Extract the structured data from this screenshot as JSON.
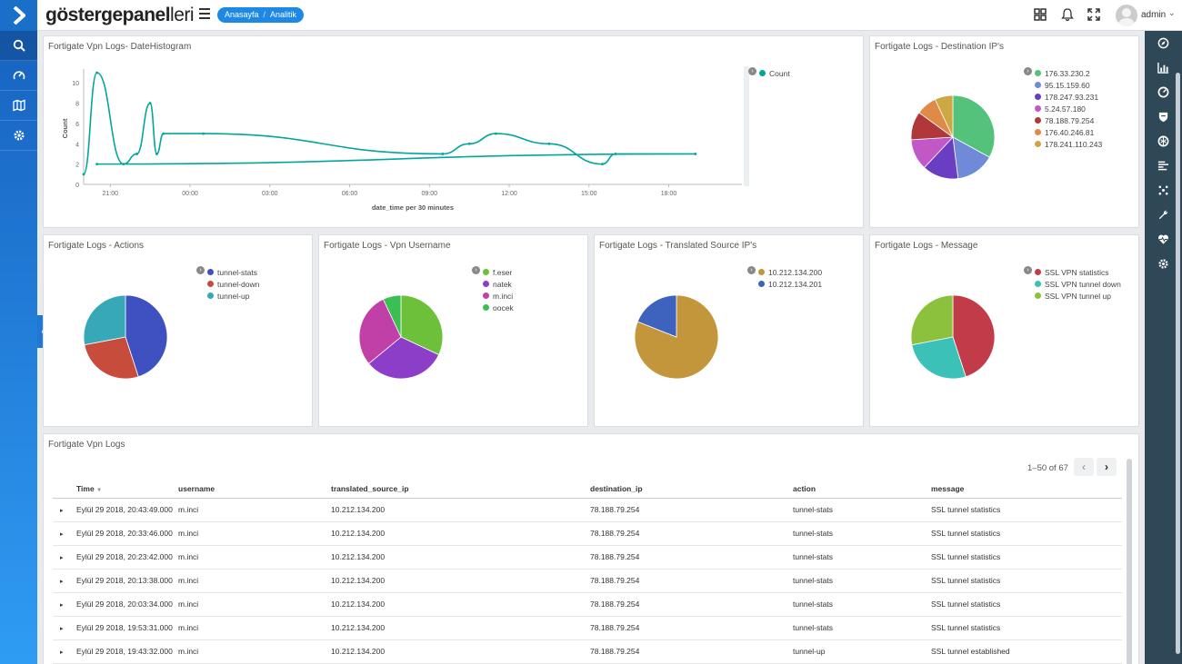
{
  "app": {
    "brand_bold": "göstergepanel",
    "brand_rest": "leri",
    "breadcrumb": [
      "Anasayfa",
      "Analitik"
    ],
    "user": "admin"
  },
  "colors": {
    "accent": "#1e88e5",
    "sidebar": "#1a6fc9",
    "right_sidebar": "#2f4858",
    "line": "#00a69c"
  },
  "left_sidebar": {
    "items": [
      {
        "icon": "search-icon"
      },
      {
        "icon": "dashboard-gauge-icon"
      },
      {
        "icon": "map-icon"
      },
      {
        "icon": "gear-icon"
      }
    ]
  },
  "right_sidebar": {
    "items": [
      {
        "icon": "compass-icon"
      },
      {
        "icon": "bar-chart-icon"
      },
      {
        "icon": "dashboard-icon"
      },
      {
        "icon": "shield-icon"
      },
      {
        "icon": "brain-icon"
      },
      {
        "icon": "list-icon"
      },
      {
        "icon": "nodes-icon"
      },
      {
        "icon": "wrench-icon"
      },
      {
        "icon": "heartbeat-icon"
      },
      {
        "icon": "gear-icon"
      }
    ]
  },
  "panels": {
    "histogram": {
      "title": "Fortigate Vpn Logs- DateHistogram",
      "legend": [
        "Count"
      ]
    },
    "dest_ip": {
      "title": "Fortigate Logs - Destination IP's",
      "legend": [
        "176.33.230.2",
        "95.15.159.60",
        "178.247.93.231",
        "5.24.57.180",
        "78.188.79.254",
        "176.40.246.81",
        "178.241.110.243"
      ]
    },
    "actions": {
      "title": "Fortigate Logs - Actions",
      "legend": [
        "tunnel-stats",
        "tunnel-down",
        "tunnel-up"
      ]
    },
    "username": {
      "title": "Fortigate Logs - Vpn Username",
      "legend": [
        "f.eser",
        "natek",
        "m.inci",
        "oocek"
      ]
    },
    "translated": {
      "title": "Fortigate Logs - Translated Source IP's",
      "legend": [
        "10.212.134.200",
        "10.212.134.201"
      ]
    },
    "message": {
      "title": "Fortigate Logs - Message",
      "legend": [
        "SSL VPN statistics",
        "SSL VPN tunnel down",
        "SSL VPN tunnel up"
      ]
    }
  },
  "table": {
    "title": "Fortigate Vpn Logs",
    "pager": "1–50 of 67",
    "columns": [
      "Time",
      "username",
      "translated_source_ip",
      "destination_ip",
      "action",
      "message"
    ],
    "rows": [
      [
        "Eylül 29 2018, 20:43:49.000",
        "m.inci",
        "10.212.134.200",
        "78.188.79.254",
        "tunnel-stats",
        "SSL tunnel statistics"
      ],
      [
        "Eylül 29 2018, 20:33:46.000",
        "m.inci",
        "10.212.134.200",
        "78.188.79.254",
        "tunnel-stats",
        "SSL tunnel statistics"
      ],
      [
        "Eylül 29 2018, 20:23:42.000",
        "m.inci",
        "10.212.134.200",
        "78.188.79.254",
        "tunnel-stats",
        "SSL tunnel statistics"
      ],
      [
        "Eylül 29 2018, 20:13:38.000",
        "m.inci",
        "10.212.134.200",
        "78.188.79.254",
        "tunnel-stats",
        "SSL tunnel statistics"
      ],
      [
        "Eylül 29 2018, 20:03:34.000",
        "m.inci",
        "10.212.134.200",
        "78.188.79.254",
        "tunnel-stats",
        "SSL tunnel statistics"
      ],
      [
        "Eylül 29 2018, 19:53:31.000",
        "m.inci",
        "10.212.134.200",
        "78.188.79.254",
        "tunnel-stats",
        "SSL tunnel statistics"
      ],
      [
        "Eylül 29 2018, 19:43:32.000",
        "m.inci",
        "10.212.134.200",
        "78.188.79.254",
        "tunnel-up",
        "SSL tunnel established"
      ]
    ]
  },
  "chart_data": [
    {
      "type": "line",
      "title": "Fortigate Vpn Logs- DateHistogram",
      "xlabel": "date_time per 30 minutes",
      "ylabel": "Count",
      "x_ticks": [
        "21:00",
        "00:00",
        "03:00",
        "06:00",
        "09:00",
        "12:00",
        "15:00",
        "18:00"
      ],
      "y_ticks": [
        "0",
        "2",
        "4",
        "6",
        "8",
        "10"
      ],
      "ylim": [
        0,
        11
      ],
      "legend_position": "top-right",
      "series": [
        {
          "name": "Count",
          "color": "#00a69c",
          "points": [
            [
              "20:00",
              1
            ],
            [
              "20:30",
              11
            ],
            [
              "21:30",
              2
            ],
            [
              "22:00",
              3
            ],
            [
              "22:30",
              8
            ],
            [
              "22:45",
              3
            ],
            [
              "23:00",
              5
            ],
            [
              "00:30",
              5
            ],
            [
              "09:30",
              3
            ],
            [
              "10:30",
              4
            ],
            [
              "11:30",
              5
            ],
            [
              "13:30",
              4
            ],
            [
              "15:30",
              2
            ],
            [
              "16:00",
              3
            ],
            [
              "19:00",
              3
            ],
            [
              "20:30",
              2
            ]
          ]
        }
      ]
    },
    {
      "type": "pie",
      "title": "Fortigate Logs - Destination IP's",
      "labels": [
        "176.33.230.2",
        "95.15.159.60",
        "178.247.93.231",
        "5.24.57.180",
        "78.188.79.254",
        "176.40.246.81",
        "178.241.110.243"
      ],
      "values": [
        33,
        15,
        14,
        12,
        11,
        8,
        7
      ],
      "colors": [
        "#54c27a",
        "#6f8bd8",
        "#6a3dc2",
        "#c257c6",
        "#b0373a",
        "#e08a48",
        "#cda842"
      ]
    },
    {
      "type": "pie",
      "title": "Fortigate Logs - Actions",
      "labels": [
        "tunnel-stats",
        "tunnel-down",
        "tunnel-up"
      ],
      "values": [
        45,
        27,
        28
      ],
      "colors": [
        "#3f51c0",
        "#c84c3c",
        "#36a8b8"
      ]
    },
    {
      "type": "pie",
      "title": "Fortigate Logs - Vpn Username",
      "labels": [
        "f.eser",
        "natek",
        "m.inci",
        "oocek"
      ],
      "values": [
        32,
        32,
        29,
        7
      ],
      "colors": [
        "#6cc03a",
        "#8d3ec9",
        "#c040a8",
        "#3bbf55"
      ]
    },
    {
      "type": "pie",
      "title": "Fortigate Logs - Translated Source IP's",
      "labels": [
        "10.212.134.200",
        "10.212.134.201"
      ],
      "values": [
        81,
        19
      ],
      "colors": [
        "#c3963c",
        "#3e63be"
      ]
    },
    {
      "type": "pie",
      "title": "Fortigate Logs - Message",
      "labels": [
        "SSL VPN statistics",
        "SSL VPN tunnel down",
        "SSL VPN tunnel up"
      ],
      "values": [
        45,
        27,
        28
      ],
      "colors": [
        "#c13c48",
        "#3cc1b8",
        "#8bc13c"
      ]
    }
  ]
}
